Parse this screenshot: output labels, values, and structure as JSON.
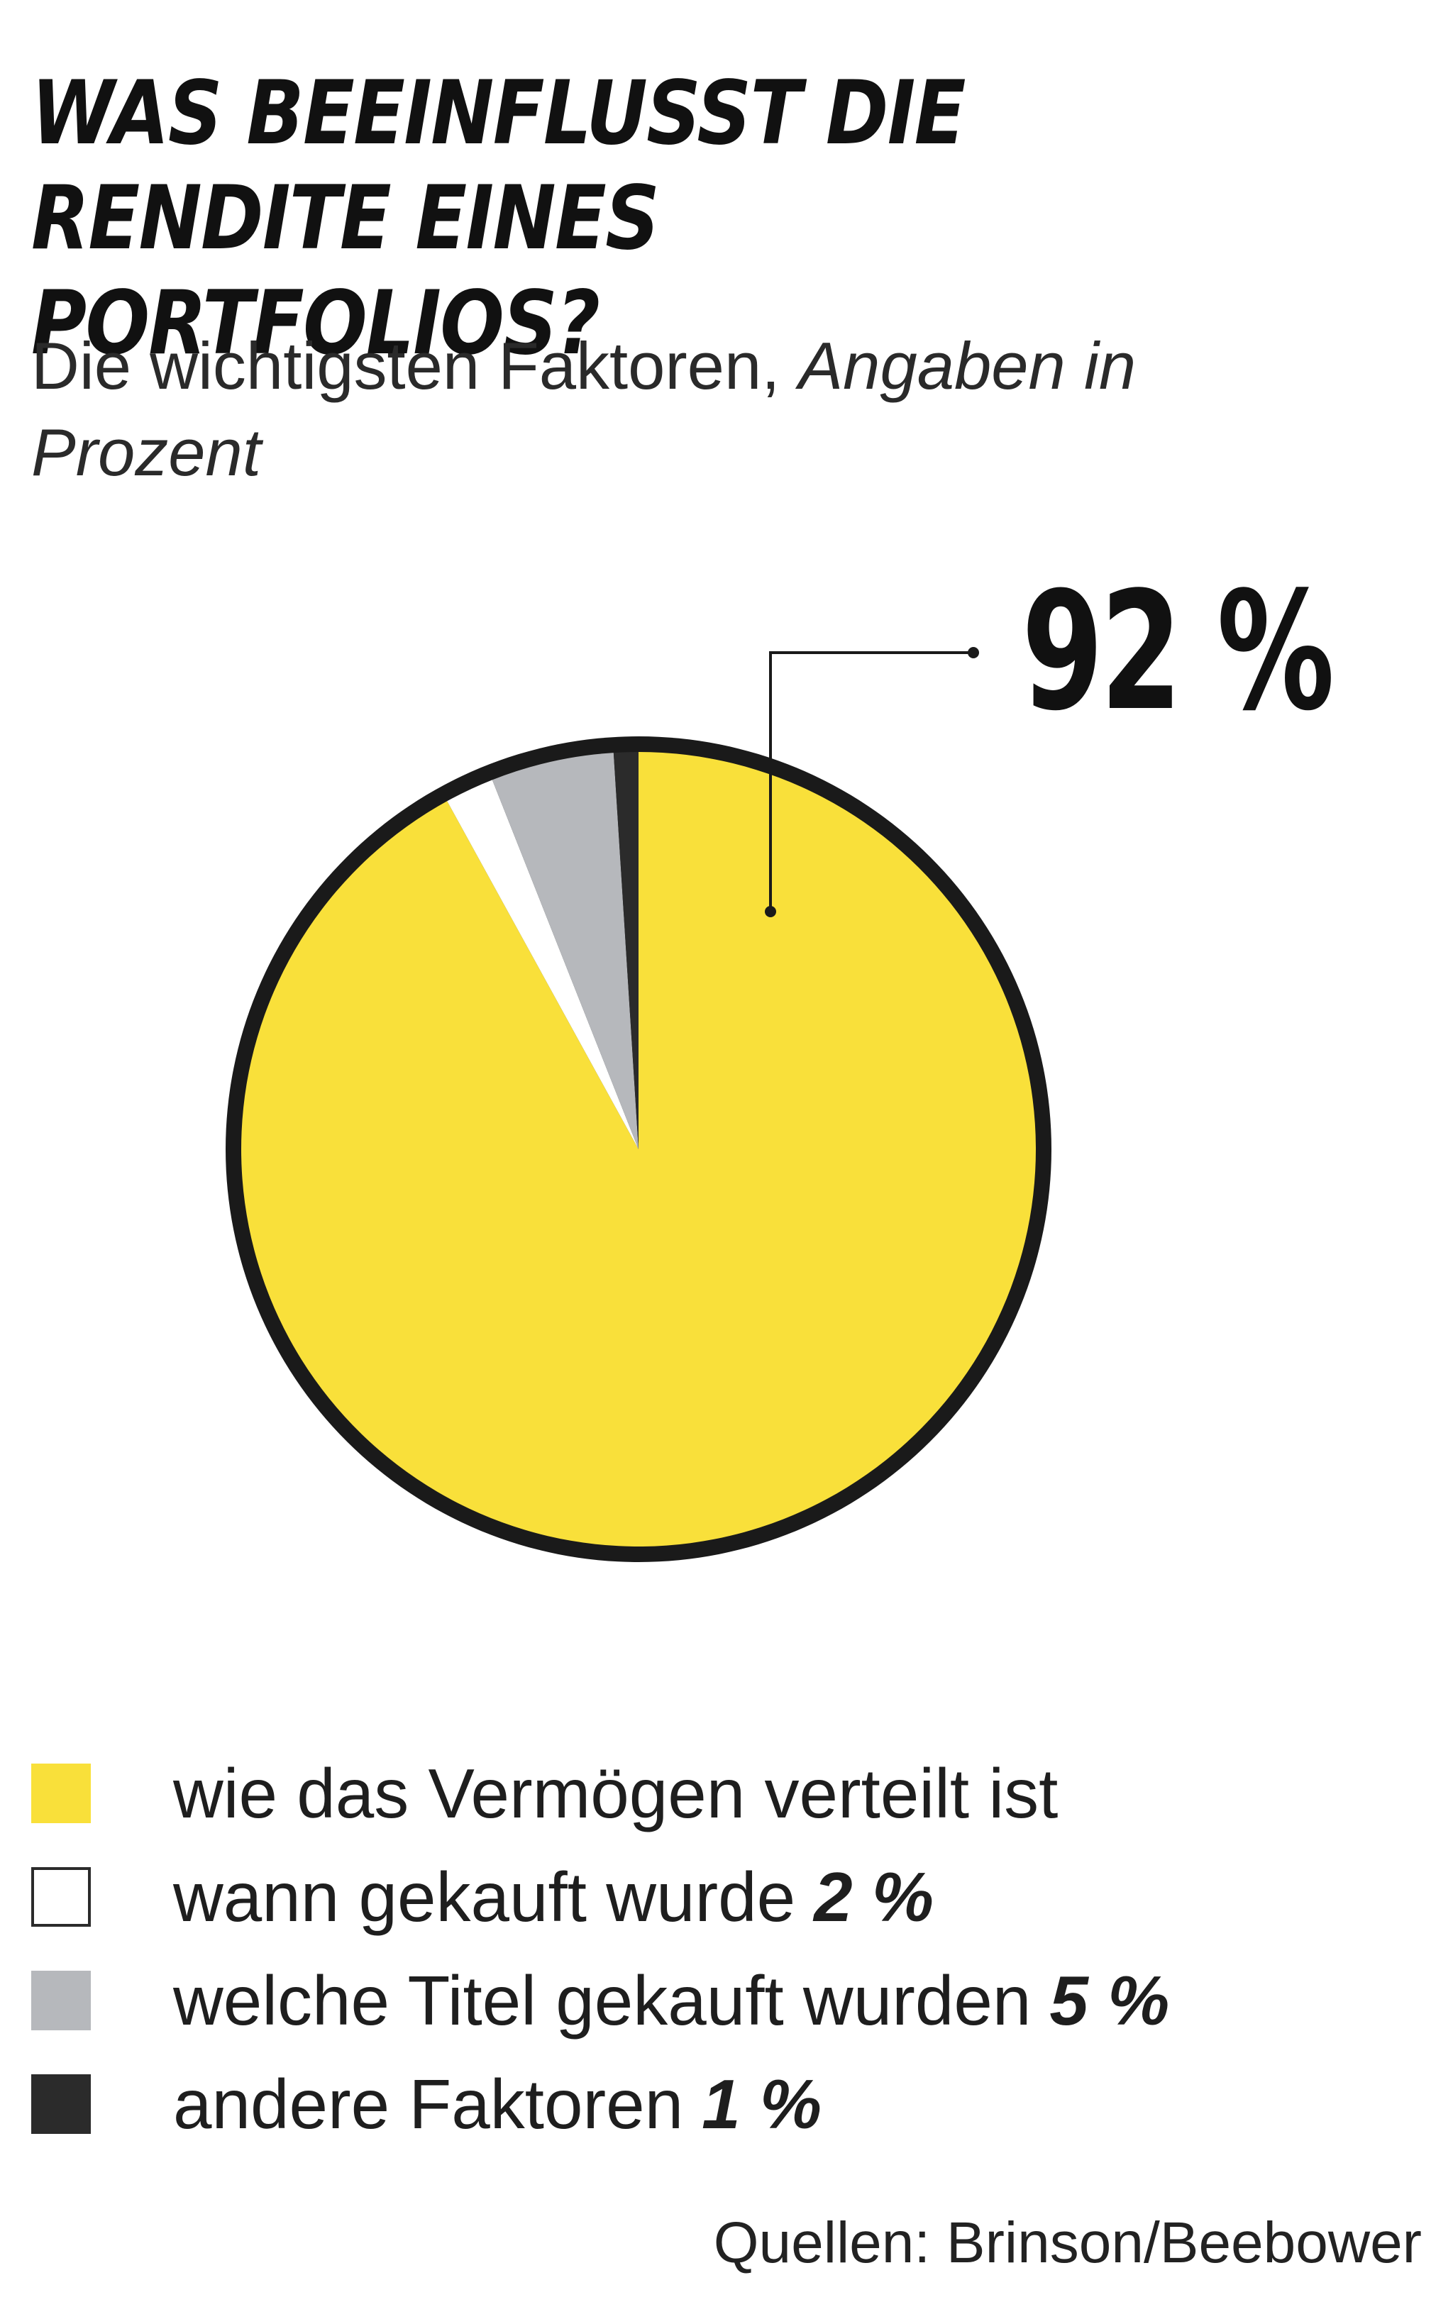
{
  "chart_data": {
    "type": "pie",
    "title": "WAS BEEINFLUSST DIE RENDITE EINES PORTFOLIOS?",
    "subtitle": "Die wichtigsten Faktoren,",
    "subtitle_italic": "Angaben in Prozent",
    "callout": "92 %",
    "categories": [
      "wie das Vermögen verteilt ist",
      "wann gekauft wurde",
      "welche Titel gekauft wurden",
      "andere Faktoren"
    ],
    "values": [
      92,
      2,
      5,
      1
    ],
    "value_labels": [
      "",
      "2 %",
      "5 %",
      "1 %"
    ],
    "colors": [
      "#f9e03a",
      "#ffffff",
      "#b6b8bc",
      "#2b2b2b"
    ],
    "outline_color": "#1a1a1a",
    "legend_placement": "bottom",
    "source": "Quellen: Brinson/Beebower"
  }
}
